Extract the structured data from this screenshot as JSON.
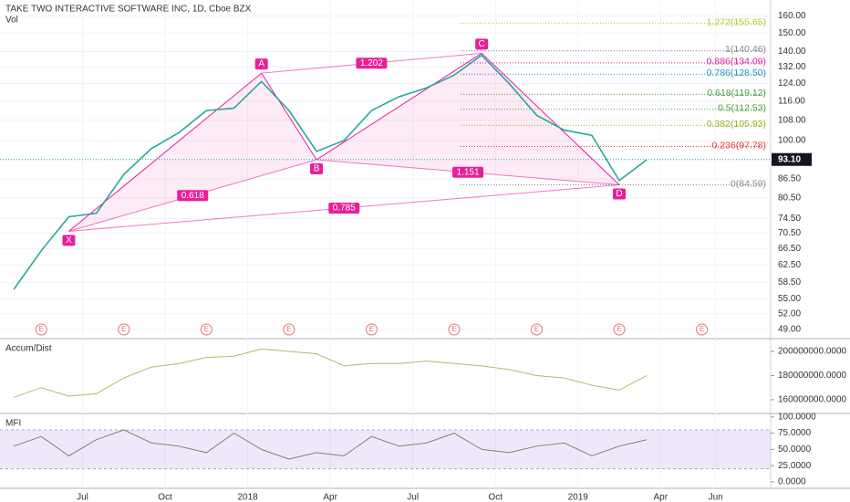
{
  "chart_data": [
    {
      "type": "line",
      "title": "TAKE TWO INTERACTIVE SOFTWARE INC, 1D, Cboe BZX",
      "subtitle": "Vol",
      "x": [
        "2017-04",
        "2017-05",
        "2017-06",
        "2017-07",
        "2017-08",
        "2017-09",
        "2017-10",
        "2017-11",
        "2017-12",
        "2018-01",
        "2018-02",
        "2018-03",
        "2018-04",
        "2018-05",
        "2018-06",
        "2018-07",
        "2018-08",
        "2018-09",
        "2018-10",
        "2018-11",
        "2018-12",
        "2019-01",
        "2019-02",
        "2019-03"
      ],
      "values": [
        57,
        66,
        75,
        76,
        88,
        97,
        103,
        112,
        113,
        125,
        112,
        96,
        100,
        112,
        118,
        122,
        128,
        138,
        124,
        110,
        104,
        102,
        86,
        93
      ],
      "color": "#26a69a",
      "log_scale": true,
      "ylim": [
        47.5,
        170
      ],
      "yticks": [
        {
          "value": 160,
          "label": "160.00"
        },
        {
          "value": 150,
          "label": "150.00"
        },
        {
          "value": 140,
          "label": "140.00"
        },
        {
          "value": 132,
          "label": "132.00"
        },
        {
          "value": 124,
          "label": "124.00"
        },
        {
          "value": 116,
          "label": "116.00"
        },
        {
          "value": 108,
          "label": "108.00"
        },
        {
          "value": 100,
          "label": "100.00"
        },
        {
          "value": 86.5,
          "label": "86.50"
        },
        {
          "value": 80.5,
          "label": "80.50"
        },
        {
          "value": 74.5,
          "label": "74.50"
        },
        {
          "value": 70.5,
          "label": "70.50"
        },
        {
          "value": 66.5,
          "label": "66.50"
        },
        {
          "value": 62.5,
          "label": "62.50"
        },
        {
          "value": 58.5,
          "label": "58.50"
        },
        {
          "value": 55,
          "label": "55.00"
        },
        {
          "value": 52,
          "label": "52.00"
        },
        {
          "value": 49,
          "label": "49.00"
        }
      ],
      "grid": true,
      "last_price": {
        "value": 93.1,
        "label": "93.10"
      },
      "xlim": [
        "2017-04",
        "2019-08"
      ],
      "xticks": [
        {
          "value": "2017-07",
          "label": "Jul"
        },
        {
          "value": "2017-10",
          "label": "Oct"
        },
        {
          "value": "2018-01",
          "label": "2018"
        },
        {
          "value": "2018-04",
          "label": "Apr"
        },
        {
          "value": "2018-07",
          "label": "Jul"
        },
        {
          "value": "2018-10",
          "label": "Oct"
        },
        {
          "value": "2019-01",
          "label": "2019"
        },
        {
          "value": "2019-04",
          "label": "Apr"
        },
        {
          "value": "2019-06",
          "label": "Jun"
        }
      ],
      "fib_levels": [
        {
          "label": "1.272(155.65)",
          "price": 155.65,
          "color": "#b5c930"
        },
        {
          "label": "1(140.46)",
          "price": 140.46,
          "color": "#888888"
        },
        {
          "label": "0.886(134.09)",
          "price": 134.09,
          "color": "#d81bab"
        },
        {
          "label": "0.786(128.50)",
          "price": 128.5,
          "color": "#2196c8"
        },
        {
          "label": "0.618(119.12)",
          "price": 119.12,
          "color": "#43a047"
        },
        {
          "label": "0.5(112.53)",
          "price": 112.53,
          "color": "#43a047"
        },
        {
          "label": "0.382(105.93)",
          "price": 105.93,
          "color": "#a0b020"
        },
        {
          "label": "0.236(97.78)",
          "price": 97.78,
          "color": "#e53935"
        },
        {
          "label": "0(84.59)",
          "price": 84.59,
          "color": "#888888"
        }
      ],
      "pattern": {
        "color": "#e91e9a",
        "points": [
          {
            "label": "X",
            "x": "2017-06",
            "price": 71
          },
          {
            "label": "A",
            "x": "2018-01",
            "price": 129
          },
          {
            "label": "B",
            "x": "2018-03",
            "price": 93
          },
          {
            "label": "C",
            "x": "2018-09",
            "price": 139
          },
          {
            "label": "D",
            "x": "2019-02",
            "price": 84.59
          }
        ],
        "legs": [
          {
            "from": "X",
            "to": "B",
            "label": "0.618"
          },
          {
            "from": "A",
            "to": "C",
            "label": "1.202"
          },
          {
            "from": "X",
            "to": "D",
            "label": "0.785"
          },
          {
            "from": "B",
            "to": "D",
            "label": "1.151"
          }
        ]
      },
      "earnings": {
        "label": "E",
        "x": [
          "2017-05",
          "2017-08",
          "2017-11",
          "2018-02",
          "2018-05",
          "2018-08",
          "2018-11",
          "2019-02",
          "2019-05"
        ]
      }
    },
    {
      "type": "line",
      "title": "Accum/Dist",
      "x": [
        "2017-04",
        "2017-05",
        "2017-06",
        "2017-07",
        "2017-08",
        "2017-09",
        "2017-10",
        "2017-11",
        "2017-12",
        "2018-01",
        "2018-02",
        "2018-03",
        "2018-04",
        "2018-05",
        "2018-06",
        "2018-07",
        "2018-08",
        "2018-09",
        "2018-10",
        "2018-11",
        "2018-12",
        "2019-01",
        "2019-02",
        "2019-03"
      ],
      "values": [
        162000000,
        170000000,
        163000000,
        165000000,
        178000000,
        187000000,
        190000000,
        195000000,
        196000000,
        202000000,
        200000000,
        198000000,
        188000000,
        190000000,
        190000000,
        192000000,
        190000000,
        188000000,
        185000000,
        180000000,
        178000000,
        172000000,
        168000000,
        180000000
      ],
      "color": "#b8b86a",
      "ylim": [
        149400000,
        209800000
      ],
      "yticks": [
        {
          "value": 200000000,
          "label": "200000000.0000"
        },
        {
          "value": 180000000,
          "label": "180000000.0000"
        },
        {
          "value": 160000000,
          "label": "160000000.0000"
        }
      ]
    },
    {
      "type": "line",
      "title": "MFI",
      "x": [
        "2017-04",
        "2017-05",
        "2017-06",
        "2017-07",
        "2017-08",
        "2017-09",
        "2017-10",
        "2017-11",
        "2017-12",
        "2018-01",
        "2018-02",
        "2018-03",
        "2018-04",
        "2018-05",
        "2018-06",
        "2018-07",
        "2018-08",
        "2018-09",
        "2018-10",
        "2018-11",
        "2018-12",
        "2019-01",
        "2019-02",
        "2019-03"
      ],
      "values": [
        55,
        70,
        40,
        65,
        80,
        60,
        55,
        45,
        75,
        50,
        35,
        45,
        40,
        70,
        55,
        60,
        75,
        50,
        45,
        55,
        60,
        40,
        55,
        65
      ],
      "color": "#8a7f6a",
      "ylim": [
        -10,
        104
      ],
      "yticks": [
        {
          "value": 100,
          "label": "100.0000"
        },
        {
          "value": 75,
          "label": "75.0000"
        },
        {
          "value": 50,
          "label": "50.0000"
        },
        {
          "value": 25,
          "label": "25.0000"
        },
        {
          "value": 0,
          "label": "0.0000"
        }
      ],
      "band": [
        20,
        80
      ],
      "band_color": "rgba(150,100,220,0.15)"
    }
  ]
}
